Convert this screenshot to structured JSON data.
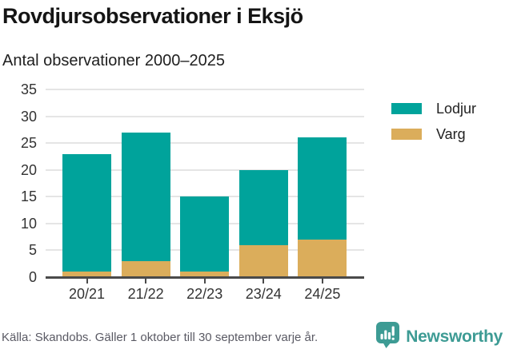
{
  "header": {
    "title": "Rovdjursobservationer i Eksjö",
    "subtitle": "Antal observationer 2000–2025"
  },
  "chart_data": {
    "type": "bar",
    "stacked": true,
    "title": "Rovdjursobservationer i Eksjö",
    "subtitle": "Antal observationer 2000–2025",
    "categories": [
      "20/21",
      "21/22",
      "22/23",
      "23/24",
      "24/25"
    ],
    "series": [
      {
        "name": "Lodjur",
        "color": "#00a39b",
        "values": [
          22,
          24,
          14,
          14,
          19
        ]
      },
      {
        "name": "Varg",
        "color": "#dbad5b",
        "values": [
          1,
          3,
          1,
          6,
          7
        ]
      }
    ],
    "stack_order_bottom_to_top": [
      "Varg",
      "Lodjur"
    ],
    "totals": [
      23,
      27,
      15,
      20,
      26
    ],
    "xlabel": "",
    "ylabel": "",
    "yticks": [
      0,
      5,
      10,
      15,
      20,
      25,
      30,
      35
    ],
    "ylim": [
      0,
      35
    ],
    "grid": true,
    "legend_position": "right"
  },
  "legend": {
    "items": [
      {
        "label": "Lodjur",
        "color": "#00a39b"
      },
      {
        "label": "Varg",
        "color": "#dbad5b"
      }
    ]
  },
  "footer": {
    "source": "Källa: Skandobs. Gäller 1 oktober till 30 september varje år.",
    "brand_name": "Newsworthy",
    "brand_icon": "newsworthy-logo",
    "brand_color": "#3d9b94"
  },
  "colors": {
    "lodjur": "#00a39b",
    "varg": "#dbad5b",
    "gridline": "#e5e5e5",
    "axis": "#4a4a4a",
    "text": "#333333",
    "source_text": "#5a5a64"
  }
}
